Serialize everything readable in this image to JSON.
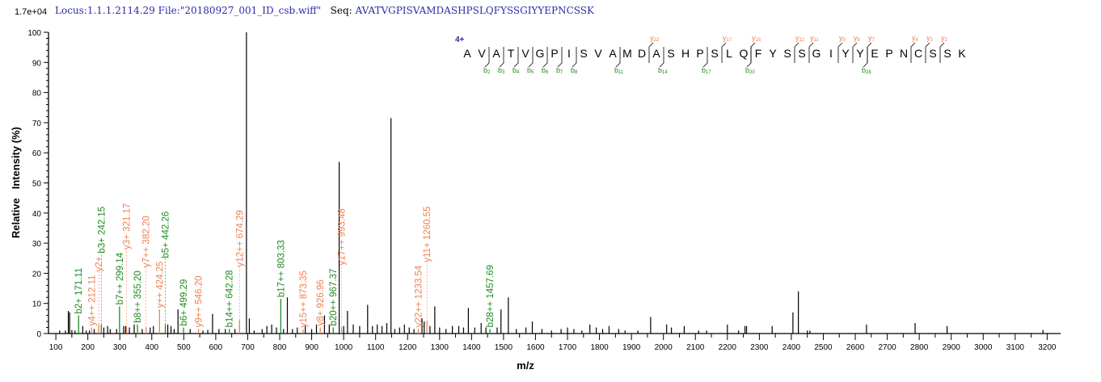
{
  "header": {
    "locus": "Locus:1.1.1.2114.29",
    "file": "File:\"20180927_001_ID_csb.wiff\"",
    "seq_label": "Seq:",
    "sequence": "AVATVGPISVAMDASHPSLQFYSSGIYYEPNCSSK"
  },
  "colors": {
    "b_ion": "#1f8a1f",
    "y_ion": "#f07f50",
    "peak": "#000000",
    "header_text": "#2c2ca8"
  },
  "chart_data": {
    "type": "bar",
    "scale_label": "1.7e+04",
    "xlabel": "m/z",
    "ylabel": "Relative   Intensity (%)",
    "xlim": [
      77,
      3242
    ],
    "ylim": [
      0,
      100
    ],
    "xticks": [
      100,
      200,
      300,
      400,
      500,
      600,
      700,
      800,
      900,
      1000,
      1100,
      1200,
      1300,
      1400,
      1500,
      1600,
      1700,
      1800,
      1900,
      2000,
      2100,
      2200,
      2300,
      2400,
      2500,
      2600,
      2700,
      2800,
      2900,
      3000,
      3100,
      3200
    ],
    "yticks": [
      0,
      10,
      20,
      30,
      40,
      50,
      60,
      70,
      80,
      90,
      100
    ],
    "grid": false,
    "charge_label": "4+",
    "b_ions": [
      2,
      3,
      4,
      5,
      6,
      7,
      8,
      11,
      14,
      17,
      20,
      28
    ],
    "y_ions": [
      22,
      17,
      15,
      12,
      11,
      9,
      8,
      7,
      4,
      3,
      2
    ],
    "annotated_peaks": [
      {
        "mz": 171.11,
        "intensity": 6,
        "label": "b2+ 171.11",
        "ion": "b"
      },
      {
        "mz": 212.11,
        "intensity": 2,
        "label": "y4++ 212.11",
        "ion": "y"
      },
      {
        "mz": 234.0,
        "intensity": 3,
        "label": "y2+",
        "ion": "y"
      },
      {
        "mz": 242.15,
        "intensity": 3,
        "label": "b3+ 242.15",
        "ion": "b"
      },
      {
        "mz": 299.14,
        "intensity": 9,
        "label": "b7++ 299.14",
        "ion": "b"
      },
      {
        "mz": 321.17,
        "intensity": 2,
        "label": "y3+ 321.17",
        "ion": "y"
      },
      {
        "mz": 355.2,
        "intensity": 3,
        "label": "b8++ 355.20",
        "ion": "b"
      },
      {
        "mz": 382.2,
        "intensity": 2,
        "label": "y7++ 382.20",
        "ion": "y"
      },
      {
        "mz": 424.25,
        "intensity": 8,
        "label": "y++ 424.25",
        "ion": "y"
      },
      {
        "mz": 442.26,
        "intensity": 3,
        "label": "b5+ 442.26",
        "ion": "b"
      },
      {
        "mz": 499.29,
        "intensity": 2,
        "label": "b6+ 499.29",
        "ion": "b"
      },
      {
        "mz": 546.2,
        "intensity": 1.5,
        "label": "y9++ 546.20",
        "ion": "y"
      },
      {
        "mz": 642.28,
        "intensity": 1.5,
        "label": "b14++ 642.28",
        "ion": "b"
      },
      {
        "mz": 674.29,
        "intensity": 4.5,
        "label": "y12++ 674.29",
        "ion": "y"
      },
      {
        "mz": 803.33,
        "intensity": 11.5,
        "label": "b17++ 803.33",
        "ion": "b"
      },
      {
        "mz": 873.35,
        "intensity": 1.5,
        "label": "y15++ 873.35",
        "ion": "y"
      },
      {
        "mz": 926.96,
        "intensity": 2,
        "label": "y8+ 926.96",
        "ion": "y"
      },
      {
        "mz": 967.37,
        "intensity": 2,
        "label": "b20++ 967.37",
        "ion": "b"
      },
      {
        "mz": 993.48,
        "intensity": 2,
        "label": "y17++ 993.48",
        "ion": "y"
      },
      {
        "mz": 1233.54,
        "intensity": 1.5,
        "label": "y22++ 1233.54",
        "ion": "y"
      },
      {
        "mz": 1260.55,
        "intensity": 4,
        "label": "y11+ 1260.55",
        "ion": "y"
      },
      {
        "mz": 1457.69,
        "intensity": 1.5,
        "label": "b28++ 1457.69",
        "ion": "b"
      }
    ],
    "peaks": [
      [
        112,
        1
      ],
      [
        130,
        1
      ],
      [
        139,
        7.5
      ],
      [
        143,
        7
      ],
      [
        150,
        1.2
      ],
      [
        160,
        1
      ],
      [
        184,
        2.5
      ],
      [
        195,
        1
      ],
      [
        205,
        1
      ],
      [
        220,
        1.5
      ],
      [
        250,
        2
      ],
      [
        262,
        2.5
      ],
      [
        270,
        1.5
      ],
      [
        290,
        1.5
      ],
      [
        312,
        2.5
      ],
      [
        318,
        2.5
      ],
      [
        330,
        2
      ],
      [
        345,
        3
      ],
      [
        370,
        1.5
      ],
      [
        395,
        2
      ],
      [
        405,
        2.5
      ],
      [
        450,
        3
      ],
      [
        460,
        2.5
      ],
      [
        470,
        1.5
      ],
      [
        482,
        8
      ],
      [
        520,
        1.5
      ],
      [
        560,
        1
      ],
      [
        575,
        1.2
      ],
      [
        590,
        6.5
      ],
      [
        610,
        1.5
      ],
      [
        630,
        1.5
      ],
      [
        660,
        1.5
      ],
      [
        696,
        100
      ],
      [
        705,
        5
      ],
      [
        720,
        1
      ],
      [
        745,
        1.5
      ],
      [
        760,
        2.5
      ],
      [
        775,
        3
      ],
      [
        790,
        2
      ],
      [
        812,
        1.5
      ],
      [
        824,
        12
      ],
      [
        840,
        1.5
      ],
      [
        855,
        2
      ],
      [
        880,
        2.5
      ],
      [
        900,
        1.5
      ],
      [
        915,
        3
      ],
      [
        940,
        6
      ],
      [
        955,
        3
      ],
      [
        986,
        57
      ],
      [
        1000,
        2.5
      ],
      [
        1012,
        7.5
      ],
      [
        1030,
        3
      ],
      [
        1050,
        2.5
      ],
      [
        1075,
        9.5
      ],
      [
        1090,
        2.5
      ],
      [
        1105,
        3
      ],
      [
        1120,
        2.5
      ],
      [
        1135,
        3.5
      ],
      [
        1148,
        71.5
      ],
      [
        1160,
        1.5
      ],
      [
        1175,
        2
      ],
      [
        1190,
        3
      ],
      [
        1205,
        2
      ],
      [
        1220,
        1.5
      ],
      [
        1245,
        5
      ],
      [
        1252,
        4
      ],
      [
        1270,
        2.5
      ],
      [
        1285,
        9
      ],
      [
        1300,
        2
      ],
      [
        1320,
        1.5
      ],
      [
        1340,
        2.5
      ],
      [
        1360,
        2.5
      ],
      [
        1375,
        2
      ],
      [
        1390,
        8.5
      ],
      [
        1410,
        2
      ],
      [
        1430,
        3.5
      ],
      [
        1445,
        2
      ],
      [
        1480,
        2
      ],
      [
        1492,
        8
      ],
      [
        1515,
        12
      ],
      [
        1540,
        1.5
      ],
      [
        1570,
        2
      ],
      [
        1590,
        4
      ],
      [
        1620,
        1.5
      ],
      [
        1650,
        1
      ],
      [
        1680,
        1.5
      ],
      [
        1700,
        2
      ],
      [
        1720,
        1.5
      ],
      [
        1745,
        1
      ],
      [
        1770,
        3
      ],
      [
        1790,
        2
      ],
      [
        1810,
        1.5
      ],
      [
        1830,
        2.5
      ],
      [
        1860,
        1.5
      ],
      [
        1880,
        1
      ],
      [
        1920,
        1
      ],
      [
        1960,
        5.5
      ],
      [
        2010,
        3
      ],
      [
        2025,
        2
      ],
      [
        2065,
        2.5
      ],
      [
        2110,
        1
      ],
      [
        2135,
        1
      ],
      [
        2200,
        3
      ],
      [
        2235,
        1
      ],
      [
        2255,
        2.5
      ],
      [
        2260,
        2.5
      ],
      [
        2340,
        2.5
      ],
      [
        2405,
        7
      ],
      [
        2422,
        14
      ],
      [
        2450,
        1
      ],
      [
        2458,
        1
      ],
      [
        2635,
        3
      ],
      [
        2787,
        3.5
      ],
      [
        2887,
        2.5
      ],
      [
        3187,
        1.2
      ]
    ]
  }
}
